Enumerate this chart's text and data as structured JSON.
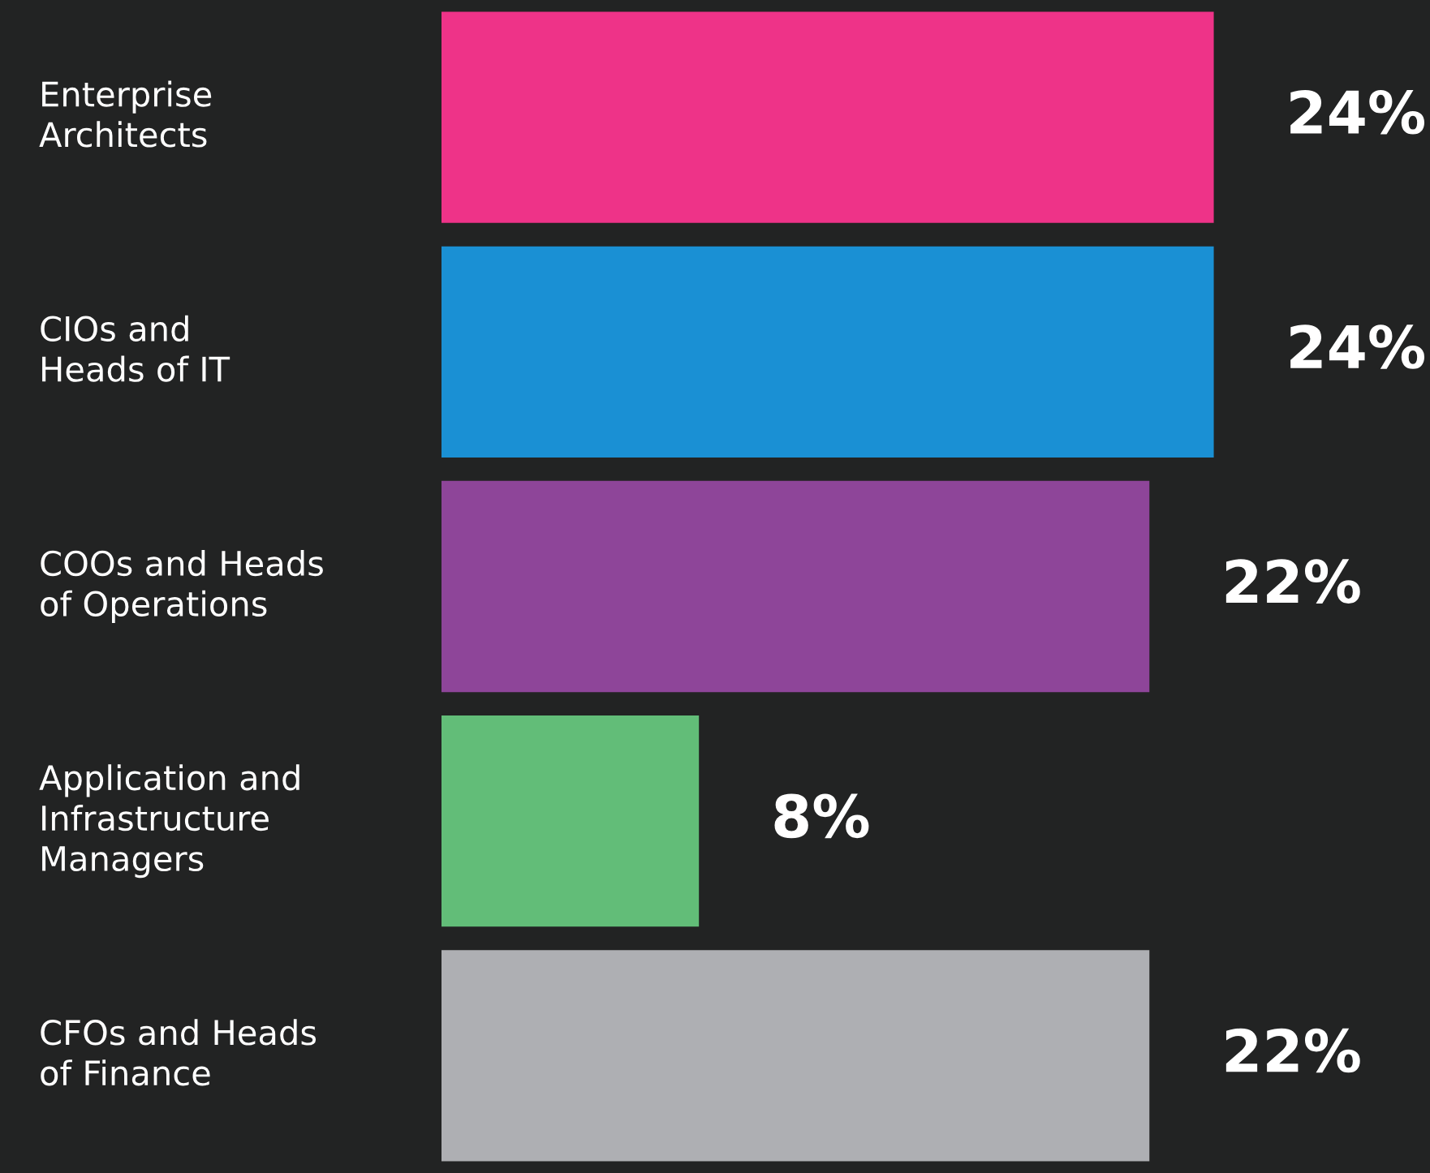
{
  "chart_data": {
    "type": "bar",
    "orientation": "horizontal",
    "categories": [
      "Enterprise\nArchitects",
      "CIOs and\nHeads of IT",
      "COOs and Heads\nof Operations",
      "Application and\nInfrastructure\nManagers",
      "CFOs and Heads\nof Finance"
    ],
    "values": [
      24,
      24,
      22,
      8,
      22
    ],
    "colors": [
      "#ee3388",
      "#1a90d4",
      "#8e4599",
      "#62bd78",
      "#aeafb3"
    ],
    "value_labels": [
      "24%",
      "24%",
      "22%",
      "8%",
      "22%"
    ]
  }
}
